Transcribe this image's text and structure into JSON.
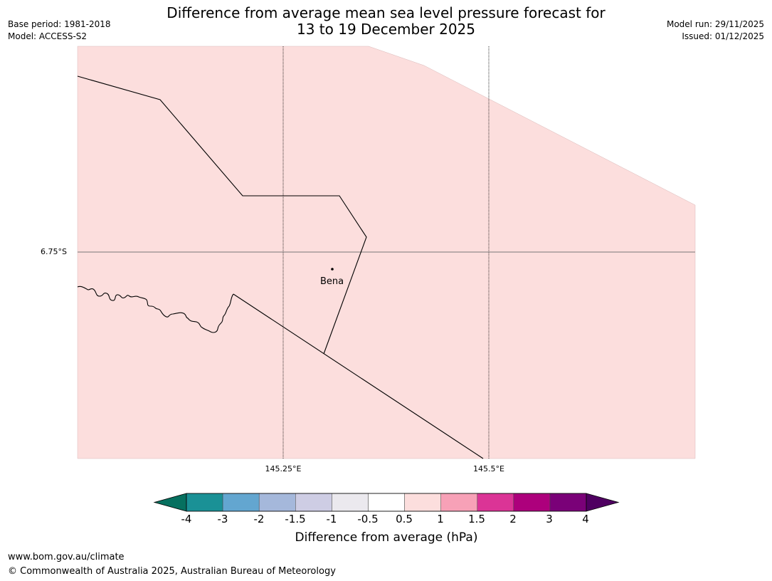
{
  "title": {
    "line1": "Difference from average mean sea level pressure forecast for",
    "line2": "13 to 19 December 2025"
  },
  "meta_left": {
    "base_period": "Base period: 1981-2018",
    "model": "Model: ACCESS-S2"
  },
  "meta_right": {
    "model_run": "Model run: 29/11/2025",
    "issued": "Issued: 01/12/2025"
  },
  "map": {
    "place": {
      "name": "Bena"
    },
    "lat_labels": [
      "6.75°S"
    ],
    "lon_labels": [
      "145.25°E",
      "145.5°E"
    ],
    "fill_color": "#fcdedd"
  },
  "colorbar": {
    "title": "Difference from average (hPa)",
    "tick_labels": [
      "-4",
      "-3",
      "-2",
      "-1.5",
      "-1",
      "-0.5",
      "0.5",
      "1",
      "1.5",
      "2",
      "3",
      "4"
    ],
    "colors": [
      "#1a9196",
      "#63a6d0",
      "#a5b8db",
      "#cecde4",
      "#ebe9ee",
      "#ffffff",
      "#fcdedd",
      "#f7a1b7",
      "#db3496",
      "#ad007c",
      "#7a0178"
    ],
    "low_extend_color": "#06705f",
    "high_extend_color": "#4f0061"
  },
  "footer": {
    "url": "www.bom.gov.au/climate",
    "copyright": "© Commonwealth of Australia 2025, Australian Bureau of Meteorology"
  }
}
